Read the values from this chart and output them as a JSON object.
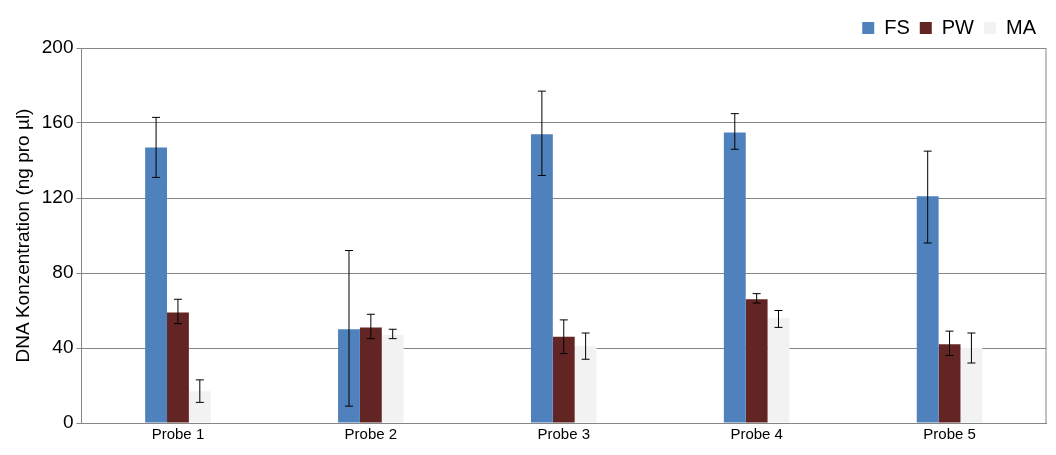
{
  "chart_data": {
    "type": "bar",
    "ylabel": "DNA Konzentration (ng pro µl)",
    "categories": [
      "Probe 1",
      "Probe 2",
      "Probe 3",
      "Probe 4",
      "Probe 5"
    ],
    "series": [
      {
        "name": "FS",
        "color": "#4f81bd",
        "values": [
          147,
          50,
          154,
          155,
          121
        ],
        "errors": [
          [
            131,
            163
          ],
          [
            9,
            92
          ],
          [
            132,
            177
          ],
          [
            146,
            165
          ],
          [
            96,
            145
          ]
        ]
      },
      {
        "name": "PW",
        "color": "#632523",
        "values": [
          59,
          51,
          46,
          66,
          42
        ],
        "errors": [
          [
            53,
            66
          ],
          [
            45,
            58
          ],
          [
            37,
            55
          ],
          [
            64,
            69
          ],
          [
            36,
            49
          ]
        ]
      },
      {
        "name": "MA",
        "color": "#f2f2f2",
        "values": [
          17,
          47,
          41,
          56,
          40
        ],
        "errors": [
          [
            11,
            23
          ],
          [
            45,
            50
          ],
          [
            34,
            48
          ],
          [
            51,
            60
          ],
          [
            32,
            48
          ]
        ]
      }
    ],
    "ylim": [
      0,
      200
    ],
    "yticks": [
      0,
      40,
      80,
      120,
      160,
      200
    ],
    "grid": "y",
    "legend": "top right"
  }
}
